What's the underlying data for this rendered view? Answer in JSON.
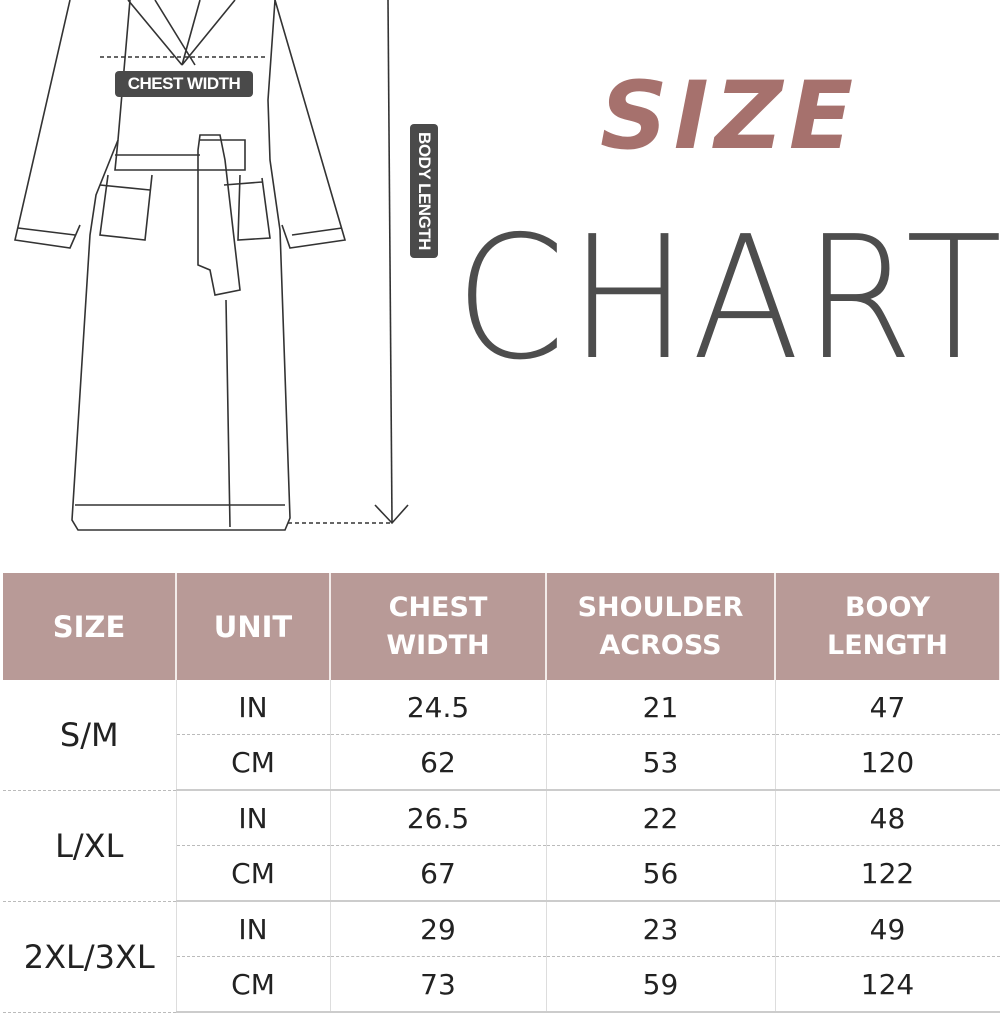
{
  "diagram": {
    "chest_label": "CHEST WIDTH",
    "body_label": "BODY LENGTH"
  },
  "title": {
    "line1": "SIZE",
    "line2": "CHART"
  },
  "colors": {
    "header": "#b89a97",
    "title_size": "#a6716d",
    "title_chart": "#4d4d4d"
  },
  "table": {
    "headers": [
      "SIZE",
      "UNIT",
      "CHEST WIDTH",
      "SHOULDER ACROSS",
      "BOOY LENGTH"
    ],
    "header_lines": [
      [
        "SIZE"
      ],
      [
        "UNIT"
      ],
      [
        "CHEST",
        "WIDTH"
      ],
      [
        "SHOULDER",
        "ACROSS"
      ],
      [
        "BOOY",
        "LENGTH"
      ]
    ],
    "rows": [
      {
        "size": "S/M",
        "in": {
          "unit": "IN",
          "chest": "24.5",
          "shoulder": "21",
          "length": "47"
        },
        "cm": {
          "unit": "CM",
          "chest": "62",
          "shoulder": "53",
          "length": "120"
        }
      },
      {
        "size": "L/XL",
        "in": {
          "unit": "IN",
          "chest": "26.5",
          "shoulder": "22",
          "length": "48"
        },
        "cm": {
          "unit": "CM",
          "chest": "67",
          "shoulder": "56",
          "length": "122"
        }
      },
      {
        "size": "2XL/3XL",
        "in": {
          "unit": "IN",
          "chest": "29",
          "shoulder": "23",
          "length": "49"
        },
        "cm": {
          "unit": "CM",
          "chest": "73",
          "shoulder": "59",
          "length": "124"
        }
      }
    ]
  }
}
